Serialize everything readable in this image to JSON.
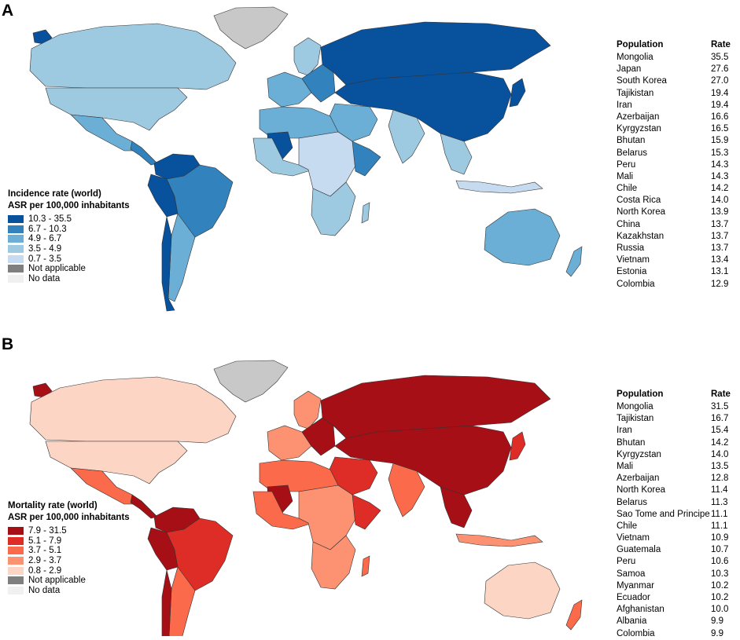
{
  "colors": {
    "incidence": [
      "#08519c",
      "#3182bd",
      "#6baed6",
      "#9ecae1",
      "#c6dbef"
    ],
    "mortality": [
      "#a50f15",
      "#de2d26",
      "#fb6a4a",
      "#fc9272",
      "#fcd5c5"
    ],
    "not_applicable": "#7f7f7f",
    "no_data": "#f0f0f0",
    "border": "#333333"
  },
  "panels": [
    {
      "letter": "A",
      "legend": {
        "title_line1": "Incidence rate (world)",
        "title_line2": "ASR per 100,000 inhabitants",
        "items": [
          "10.3 - 35.5",
          "6.7 - 10.3",
          "4.9 - 6.7",
          "3.5 - 4.9",
          "0.7 - 3.5",
          "Not applicable",
          "No data"
        ]
      },
      "table": {
        "header_population": "Population",
        "header_rate": "Rate",
        "rows": [
          {
            "population": "Mongolia",
            "rate": "35.5"
          },
          {
            "population": "Japan",
            "rate": "27.6"
          },
          {
            "population": "South Korea",
            "rate": "27.0"
          },
          {
            "population": "Tajikistan",
            "rate": "19.4"
          },
          {
            "population": "Iran",
            "rate": "19.4"
          },
          {
            "population": "Azerbaijan",
            "rate": "16.6"
          },
          {
            "population": "Kyrgyzstan",
            "rate": "16.5"
          },
          {
            "population": "Bhutan",
            "rate": "15.9"
          },
          {
            "population": "Belarus",
            "rate": "15.3"
          },
          {
            "population": "Peru",
            "rate": "14.3"
          },
          {
            "population": "Mali",
            "rate": "14.3"
          },
          {
            "population": "Chile",
            "rate": "14.2"
          },
          {
            "population": "Costa Rica",
            "rate": "14.0"
          },
          {
            "population": "North Korea",
            "rate": "13.9"
          },
          {
            "population": "China",
            "rate": "13.7"
          },
          {
            "population": "Kazakhstan",
            "rate": "13.7"
          },
          {
            "population": "Russia",
            "rate": "13.7"
          },
          {
            "population": "Vietnam",
            "rate": "13.4"
          },
          {
            "population": "Estonia",
            "rate": "13.1"
          },
          {
            "population": "Colombia",
            "rate": "12.9"
          }
        ]
      }
    },
    {
      "letter": "B",
      "legend": {
        "title_line1": "Mortality rate (world)",
        "title_line2": "ASR per 100,000 inhabitants",
        "items": [
          "7.9 - 31.5",
          "5.1 - 7.9",
          "3.7 - 5.1",
          "2.9 - 3.7",
          "0.8 - 2.9",
          "Not applicable",
          "No data"
        ]
      },
      "table": {
        "header_population": "Population",
        "header_rate": "Rate",
        "rows": [
          {
            "population": "Mongolia",
            "rate": "31.5"
          },
          {
            "population": "Tajikistan",
            "rate": "16.7"
          },
          {
            "population": "Iran",
            "rate": "15.4"
          },
          {
            "population": "Bhutan",
            "rate": "14.2"
          },
          {
            "population": "Kyrgyzstan",
            "rate": "14.0"
          },
          {
            "population": "Mali",
            "rate": "13.5"
          },
          {
            "population": "Azerbaijan",
            "rate": "12.8"
          },
          {
            "population": "North Korea",
            "rate": "11.4"
          },
          {
            "population": "Belarus",
            "rate": "11.3"
          },
          {
            "population": "Sao Tome and Principe",
            "rate": "11.1"
          },
          {
            "population": "Chile",
            "rate": "11.1"
          },
          {
            "population": "Vietnam",
            "rate": "10.9"
          },
          {
            "population": "Guatemala",
            "rate": "10.7"
          },
          {
            "population": "Peru",
            "rate": "10.6"
          },
          {
            "population": "Samoa",
            "rate": "10.3"
          },
          {
            "population": "Myanmar",
            "rate": "10.2"
          },
          {
            "population": "Ecuador",
            "rate": "10.2"
          },
          {
            "population": "Afghanistan",
            "rate": "10.0"
          },
          {
            "population": "Albania",
            "rate": "9.9"
          },
          {
            "population": "Colombia",
            "rate": "9.9"
          }
        ]
      }
    }
  ]
}
